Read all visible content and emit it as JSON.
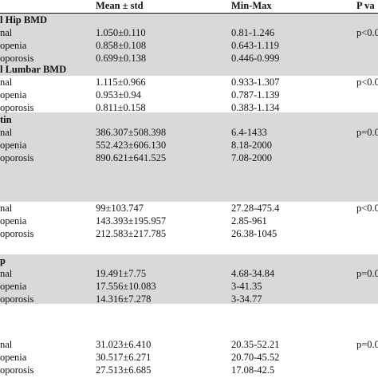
{
  "header": {
    "col1": "Mean ± std",
    "col2": "Min-Max",
    "col3": "P va"
  },
  "groups": [
    {
      "title": "l Hip BMD",
      "shaded": true,
      "rows": [
        {
          "label": "nal",
          "mean": "1.050±0.110",
          "range": "0.81-1.246",
          "p": "p<0.0"
        },
        {
          "label": "openia",
          "mean": "0.858±0.108",
          "range": "0.643-1.119",
          "p": ""
        },
        {
          "label": "oporosis",
          "mean": "0.699±0.138",
          "range": "0.446-0.999",
          "p": ""
        }
      ]
    },
    {
      "title": "l Lumbar BMD",
      "shaded": false,
      "rows": [
        {
          "label": "nal",
          "mean": "1.115±0.966",
          "range": "0.933-1.307",
          "p": "p<0.0"
        },
        {
          "label": "openia",
          "mean": "0.953±0.94",
          "range": "0.787-1.139",
          "p": ""
        },
        {
          "label": "oporosis",
          "mean": "0.811±0.158",
          "range": "0.383-1.134",
          "p": ""
        }
      ]
    },
    {
      "title": "tin",
      "shaded": true,
      "rows": [
        {
          "label": "nal",
          "mean": "386.307±508.398",
          "range": "6.4-1433",
          "p": "p=0.0"
        },
        {
          "label": "openia",
          "mean": "552.423±606.130",
          "range": "8.18-2000",
          "p": ""
        },
        {
          "label": "oporosis",
          "mean": "890.621±641.525",
          "range": "7.08-2000",
          "p": ""
        }
      ]
    },
    {
      "title": "",
      "shaded": false,
      "rows": [
        {
          "label": "nal",
          "mean": "99±103.747",
          "range": "27.28-475.4",
          "p": "p<0.0"
        },
        {
          "label": "openia",
          "mean": "143.393±195.957",
          "range": "2.85-961",
          "p": ""
        },
        {
          "label": "oporosis",
          "mean": "212.583±217.785",
          "range": "26.38-1045",
          "p": ""
        }
      ]
    },
    {
      "title": "p",
      "shaded": true,
      "rows": [
        {
          "label": "nal",
          "mean": "19.491±7.75",
          "range": "4.68-34.84",
          "p": "p=0.0"
        },
        {
          "label": "openia",
          "mean": "17.556±10.083",
          "range": "3-41.35",
          "p": ""
        },
        {
          "label": "oporosis",
          "mean": "14.316±7.278",
          "range": "3-34.77",
          "p": ""
        }
      ]
    },
    {
      "title": "",
      "shaded": false,
      "rows": [
        {
          "label": "nal",
          "mean": "31.023±6.410",
          "range": "20.35-52.21",
          "p": "p=0.0"
        },
        {
          "label": "openia",
          "mean": "30.517±6.271",
          "range": "20.70-45.52",
          "p": ""
        },
        {
          "label": "oporosis",
          "mean": "27.513±6.685",
          "range": "17.08-42.5",
          "p": ""
        }
      ]
    }
  ]
}
